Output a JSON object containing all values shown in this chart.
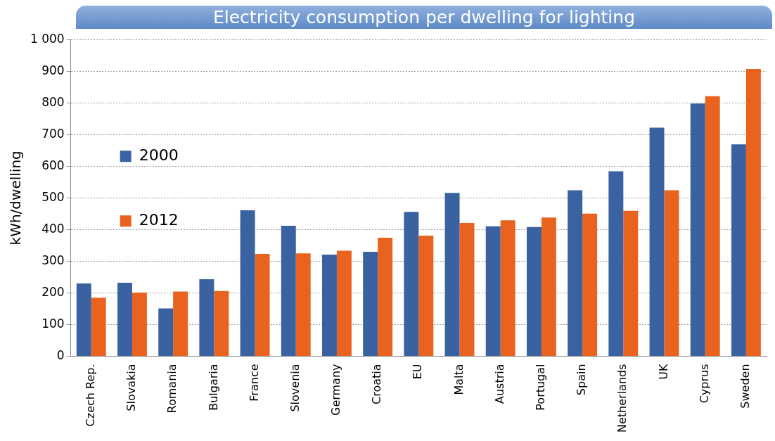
{
  "chart_data": {
    "type": "bar",
    "title": "Electricity consumption per dwelling for lighting",
    "ylabel": "kWh/dwelling",
    "categories": [
      "Czech Rep.",
      "Slovakia",
      "Romania",
      "Bulgaria",
      "France",
      "Slovenia",
      "Germany",
      "Croatia",
      "EU",
      "Malta",
      "Austria",
      "Portugal",
      "Spain",
      "Netherlands",
      "UK",
      "Cyprus",
      "Sweden"
    ],
    "series": [
      {
        "name": "2000",
        "color": "#3a62a0",
        "values": [
          230,
          232,
          151,
          243,
          461,
          412,
          321,
          330,
          456,
          516,
          410,
          408,
          524,
          584,
          722,
          798,
          669
        ]
      },
      {
        "name": "2012",
        "color": "#ea631e",
        "values": [
          185,
          201,
          204,
          206,
          323,
          325,
          333,
          374,
          381,
          421,
          429,
          438,
          450,
          459,
          524,
          821,
          907
        ]
      }
    ],
    "ylim": [
      0,
      1000
    ],
    "yticks": [
      0,
      100,
      200,
      300,
      400,
      500,
      600,
      700,
      800,
      900,
      {
        "value": 1000,
        "label": "1 000"
      }
    ],
    "grid": "y",
    "legend": "top"
  }
}
